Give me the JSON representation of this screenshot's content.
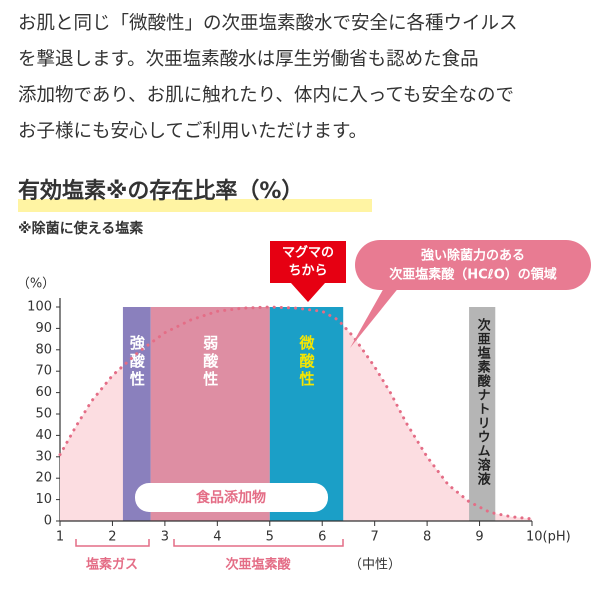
{
  "paragraph": [
    "お肌と同じ「微酸性」の次亜塩素酸水で安全に各種ウイルス",
    "を撃退します。次亜塩素酸水は厚生労働省も認めた食品",
    "添加物であり、お肌に触れたり、体内に入っても安全なので",
    "お子様にも安心してご利用いただけます。"
  ],
  "chart_data": {
    "type": "area",
    "title": "有効塩素※の存在比率（%）",
    "subtitle": "※除菌に使える塩素",
    "y_label": "（%）",
    "x": [
      1,
      1.3,
      1.6,
      2,
      2.5,
      3,
      3.5,
      4,
      4.5,
      5,
      5.5,
      6,
      6.3,
      6.6,
      7,
      7.3,
      7.6,
      8,
      8.4,
      8.8,
      9.2,
      9.6,
      10
    ],
    "values": [
      31,
      44,
      56,
      68,
      79,
      88,
      94,
      98,
      99.5,
      100,
      99.5,
      98,
      94,
      86,
      72,
      60,
      46,
      30,
      17,
      9,
      4,
      2,
      1
    ],
    "color": "#e46d86",
    "fill_color": "#fcdde1",
    "xlim": [
      1,
      10
    ],
    "ylim": [
      0,
      100
    ],
    "xticks": [
      1,
      2,
      3,
      4,
      5,
      6,
      7,
      8,
      9,
      {
        "value": 10,
        "label": "10(pH)"
      }
    ],
    "yticks": [
      0,
      10,
      20,
      30,
      40,
      50,
      60,
      70,
      80,
      90,
      100
    ],
    "grid": false,
    "regions": [
      {
        "label": "強酸性",
        "x": [
          2.2,
          2.73
        ],
        "color": "#8a80bd",
        "label_color": "#ffffff"
      },
      {
        "label": "弱酸性",
        "x": [
          2.73,
          5
        ],
        "color": "#de8ea3",
        "label_color": "#ffffff"
      },
      {
        "label": "微酸性",
        "x": [
          5,
          6.4
        ],
        "color": "#1b9fc7",
        "label_color": "#f6e600"
      },
      {
        "label": "次亜塩素酸ナトリウム溶液",
        "x": [
          8.8,
          9.3
        ],
        "color": "#b5b5b5",
        "label_color": "#222222"
      }
    ],
    "annotations": {
      "magma": [
        "マグマの",
        "ちから"
      ],
      "callout": [
        "強い除菌力のある",
        "次亜塩素酸（HCℓO）の領域"
      ],
      "food_additive": "食品添加物",
      "chlorine_gas": "塩素ガス",
      "hypochlorous": "次亜塩素酸",
      "neutral": "（中性）"
    }
  }
}
